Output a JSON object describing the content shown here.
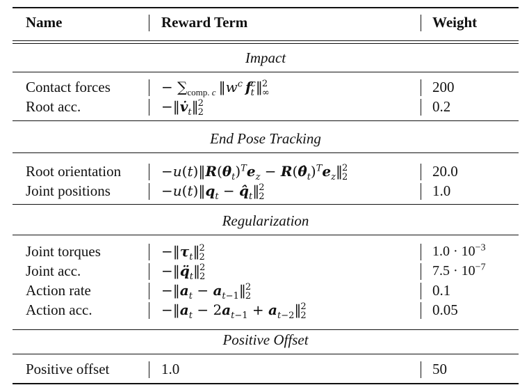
{
  "header": {
    "name": "Name",
    "term": "Reward Term",
    "weight": "Weight"
  },
  "sections": [
    {
      "title": "Impact",
      "rows": [
        {
          "name": "Contact forces",
          "term": "− ∑comp. c ‖w^c f_t^c‖²∞",
          "weight": "200"
        },
        {
          "name": "Root acc.",
          "term": "−‖v̇_t‖²₂",
          "weight": "0.2"
        }
      ]
    },
    {
      "title": "End Pose Tracking",
      "rows": [
        {
          "name": "Root orientation",
          "term": "−u(t)‖R(θ_t)^T e_z − R(θ̂_t)^T e_z‖²₂",
          "weight": "20.0"
        },
        {
          "name": "Joint positions",
          "term": "−u(t)‖q_t − q̂_t‖²₂",
          "weight": "1.0"
        }
      ]
    },
    {
      "title": "Regularization",
      "rows": [
        {
          "name": "Joint torques",
          "term": "−‖τ_t‖²₂",
          "weight": "1.0 · 10−3"
        },
        {
          "name": "Joint acc.",
          "term": "−‖q̈_t‖²₂",
          "weight": "7.5 · 10−7"
        },
        {
          "name": "Action rate",
          "term": "−‖a_t − a_{t−1}‖²₂",
          "weight": "0.1"
        },
        {
          "name": "Action acc.",
          "term": "−‖a_t − 2a_{t−1} + a_{t−2}‖²₂",
          "weight": "0.05"
        }
      ]
    },
    {
      "title": "Positive Offset",
      "rows": [
        {
          "name": "Positive offset",
          "term": "1.0",
          "weight": "50"
        }
      ]
    }
  ]
}
